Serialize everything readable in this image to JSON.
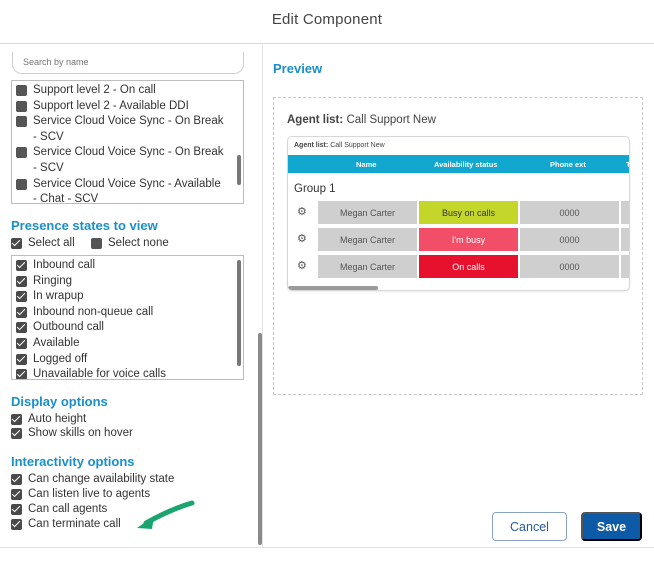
{
  "dialog": {
    "title": "Edit Component"
  },
  "search": {
    "placeholder": "Search by name"
  },
  "queues": [
    {
      "label": "Support level 2 - On call"
    },
    {
      "label": "Support level 2 - Available DDI"
    },
    {
      "label": "Service Cloud Voice Sync - On Break - SCV"
    },
    {
      "label": "Service Cloud Voice Sync - On Break - SCV"
    },
    {
      "label": "Service Cloud Voice Sync - Available - Chat - SCV"
    }
  ],
  "presence": {
    "title": "Presence states to view",
    "select_all": "Select all",
    "select_none": "Select none",
    "items": [
      {
        "label": "Inbound call"
      },
      {
        "label": "Ringing"
      },
      {
        "label": "In wrapup"
      },
      {
        "label": "Inbound non-queue call"
      },
      {
        "label": "Outbound call"
      },
      {
        "label": "Available"
      },
      {
        "label": "Logged off"
      },
      {
        "label": "Unavailable for voice calls"
      }
    ]
  },
  "display": {
    "title": "Display options",
    "items": [
      {
        "label": "Auto height"
      },
      {
        "label": "Show skills on hover"
      }
    ]
  },
  "interactivity": {
    "title": "Interactivity options",
    "items": [
      {
        "label": "Can change availability state"
      },
      {
        "label": "Can listen live to agents"
      },
      {
        "label": "Can call agents"
      },
      {
        "label": "Can terminate call"
      }
    ]
  },
  "preview": {
    "title": "Preview",
    "agent_list_label": "Agent list:",
    "agent_list_name": "Call Support New",
    "widget_label": "Agent list:",
    "widget_name": "Call Support New",
    "columns": {
      "name": "Name",
      "status": "Availability status",
      "ext": "Phone ext",
      "extra": "T"
    },
    "group": "Group 1",
    "rows": [
      {
        "name": "Megan Carter",
        "status": "Busy on calls",
        "status_color": "#c4d62a",
        "status_text_color": "#333333",
        "ext": "0000"
      },
      {
        "name": "Megan Carter",
        "status": "I'm busy",
        "status_color": "#f24e68",
        "status_text_color": "#ffffff",
        "ext": "0000"
      },
      {
        "name": "Megan Carter",
        "status": "On calls",
        "status_color": "#e8112d",
        "status_text_color": "#ffffff",
        "ext": "0000"
      }
    ]
  },
  "buttons": {
    "cancel": "Cancel",
    "save": "Save"
  },
  "colors": {
    "accent": "#1a8fc9",
    "header": "#11a7cf",
    "save": "#0d5aa7",
    "arrow": "#1aa56e"
  }
}
